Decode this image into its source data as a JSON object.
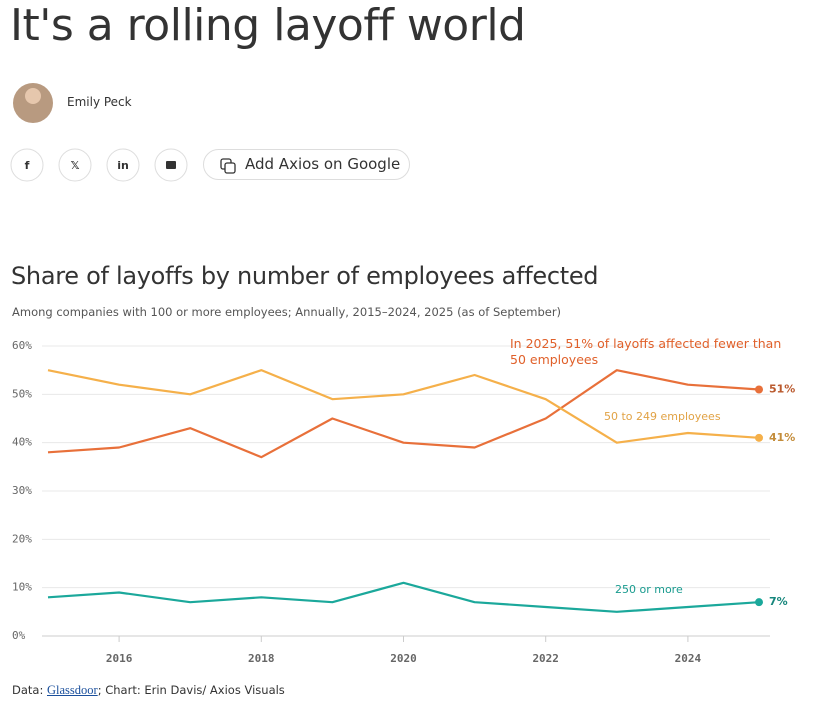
{
  "header": {
    "title": "It's a rolling layoff world",
    "author": "Emily Peck",
    "button": "Add Axios on Google"
  },
  "chart_data": {
    "type": "line",
    "title": "Share of layoffs by number of employees affected",
    "subtitle": "Among companies with 100 or more employees; Annually, 2015–2024, 2025 (as of September)",
    "x": [
      2015,
      2016,
      2017,
      2018,
      2019,
      2020,
      2021,
      2022,
      2023,
      2024,
      2025
    ],
    "xlim": [
      2015,
      2025
    ],
    "xticks": [
      2016,
      2018,
      2020,
      2022,
      2024
    ],
    "ylim": [
      0,
      60
    ],
    "yticks": [
      {
        "value": 0,
        "label": "0%"
      },
      {
        "value": 10,
        "label": "10%"
      },
      {
        "value": 20,
        "label": "20%"
      },
      {
        "value": 30,
        "label": "30%"
      },
      {
        "value": 40,
        "label": "40%"
      },
      {
        "value": 50,
        "label": "50%"
      },
      {
        "value": 60,
        "label": "60%"
      }
    ],
    "grid": true,
    "series": [
      {
        "name": "In 2025, 51% of layoffs affected fewer than 50 employees",
        "color": "#e8703a",
        "values": [
          38,
          39,
          43,
          37,
          45,
          40,
          39,
          45,
          55,
          52,
          51
        ],
        "value_labels": [
          null,
          null,
          null,
          null,
          null,
          null,
          null,
          null,
          null,
          null,
          "51%"
        ]
      },
      {
        "name": "50 to 249 employees",
        "color": "#f5b04a",
        "values": [
          55,
          52,
          50,
          55,
          49,
          50,
          54,
          49,
          40,
          42,
          41
        ],
        "value_labels": [
          null,
          null,
          null,
          null,
          null,
          null,
          null,
          null,
          null,
          null,
          "41%"
        ]
      },
      {
        "name": "250 or more",
        "color": "#1ba89b",
        "values": [
          8,
          9,
          7,
          8,
          7,
          11,
          7,
          6,
          5,
          6,
          7
        ],
        "value_labels": [
          null,
          null,
          null,
          null,
          null,
          null,
          null,
          null,
          null,
          null,
          "7%"
        ]
      }
    ]
  },
  "footer": {
    "prefix": "Data:",
    "source": "Glassdoor",
    "credit": "; Chart: Erin Davis/ Axios Visuals"
  }
}
